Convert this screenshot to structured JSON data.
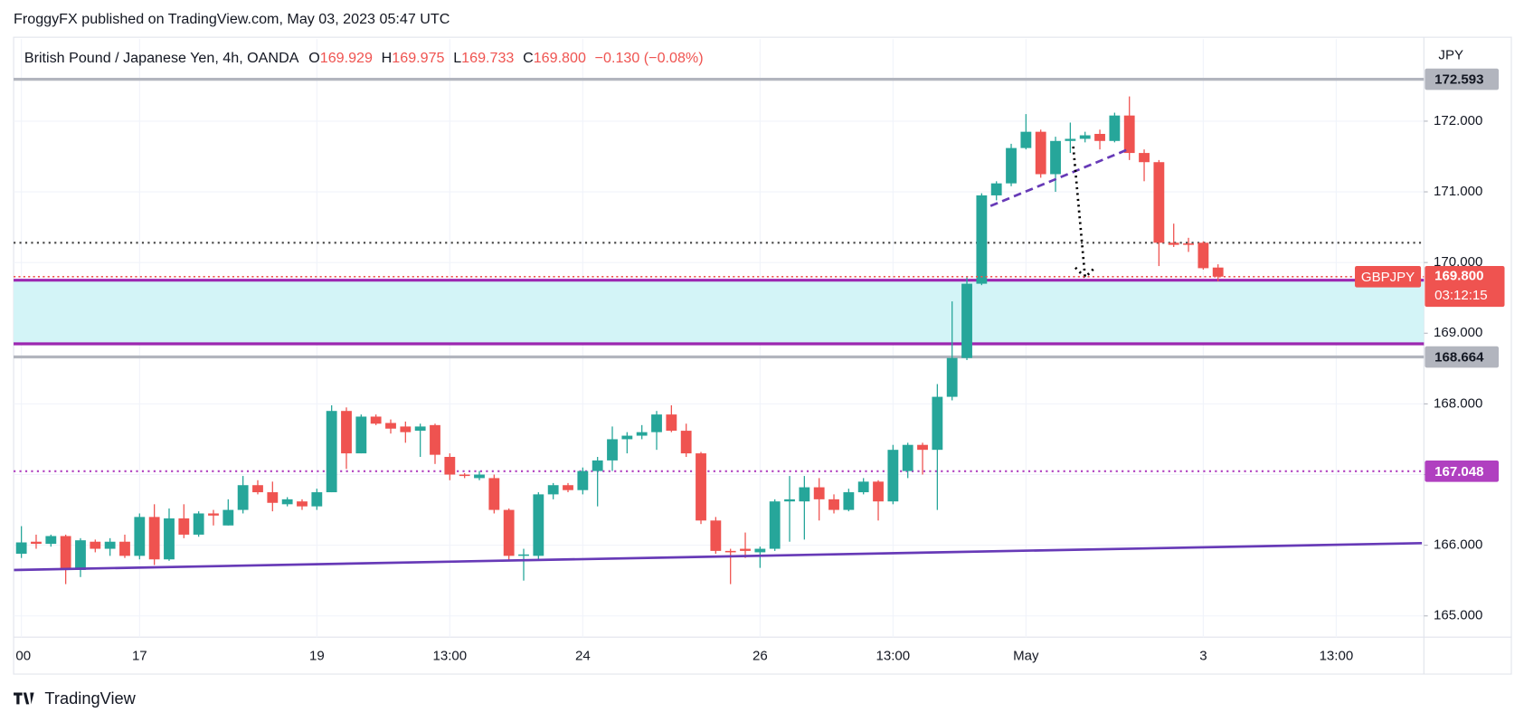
{
  "header": {
    "publisher": "FroggyFX published on TradingView.com, May 03, 2023 05:47 UTC"
  },
  "footer": {
    "brand": "TradingView"
  },
  "chart_data": {
    "type": "candlestick",
    "title": "British Pound / Japanese Yen, 4h, OANDA",
    "ohlc_legend": [
      {
        "label": "O",
        "value": "169.929"
      },
      {
        "label": "H",
        "value": "169.975"
      },
      {
        "label": "L",
        "value": "169.733"
      },
      {
        "label": "C",
        "value": "169.800"
      }
    ],
    "change": "−0.130 (−0.08%)",
    "currency": "JPY",
    "categories": [
      "00",
      null,
      null,
      null,
      null,
      null,
      null,
      null,
      "17",
      null,
      null,
      null,
      null,
      null,
      null,
      null,
      null,
      null,
      null,
      null,
      "19",
      null,
      null,
      null,
      null,
      null,
      null,
      null,
      null,
      "13:00",
      null,
      null,
      null,
      null,
      null,
      null,
      null,
      null,
      "24",
      null,
      null,
      null,
      null,
      null,
      null,
      null,
      null,
      null,
      null,
      null,
      "26",
      null,
      null,
      null,
      null,
      null,
      null,
      null,
      null,
      "13:00",
      null,
      null,
      null,
      null,
      null,
      null,
      null,
      null,
      "May",
      null,
      null,
      null,
      null,
      null,
      null,
      null,
      null,
      null,
      null,
      null,
      "3",
      null,
      null,
      null,
      null,
      null,
      null,
      null,
      null,
      "13:00",
      null,
      null,
      null,
      null,
      null
    ],
    "series": [
      {
        "name": "GBPJPY",
        "open": [
          165.88,
          166.05,
          166.02,
          166.13,
          165.65,
          166.05,
          165.95,
          166.05,
          165.85,
          166.4,
          165.8,
          166.38,
          166.15,
          166.45,
          166.28,
          166.5,
          166.85,
          166.75,
          166.58,
          166.62,
          166.55,
          166.75,
          167.9,
          167.3,
          167.82,
          167.73,
          167.68,
          167.62,
          167.7,
          167.25,
          167.0,
          166.95,
          166.95,
          166.5,
          165.85,
          165.85,
          166.72,
          166.85,
          166.78,
          167.05,
          167.2,
          167.5,
          167.55,
          167.6,
          167.85,
          167.62,
          167.3,
          166.35,
          165.92,
          165.95,
          165.9,
          165.95,
          166.62,
          166.62,
          166.82,
          166.65,
          166.5,
          166.75,
          166.9,
          166.62,
          167.05,
          167.42,
          167.35,
          168.1,
          168.65,
          169.7,
          170.95,
          171.12,
          171.62,
          171.85,
          171.25,
          171.72,
          171.75,
          171.82,
          171.72,
          172.08,
          171.55,
          171.42,
          170.28,
          170.27,
          170.28,
          169.929,
          null,
          null,
          null,
          null,
          null,
          null,
          null,
          null,
          null,
          null,
          null,
          null,
          null
        ],
        "high": [
          166.27,
          166.15,
          166.15,
          166.15,
          166.1,
          166.08,
          166.1,
          166.15,
          166.45,
          166.58,
          166.52,
          166.58,
          166.48,
          166.5,
          166.65,
          166.98,
          166.92,
          166.9,
          166.68,
          166.65,
          166.8,
          167.98,
          167.95,
          167.85,
          167.85,
          167.78,
          167.75,
          167.72,
          167.72,
          167.3,
          167.02,
          167.05,
          167.0,
          166.52,
          165.95,
          166.75,
          166.88,
          166.88,
          167.1,
          167.25,
          167.68,
          167.6,
          167.7,
          167.9,
          167.98,
          167.72,
          167.32,
          166.4,
          165.95,
          166.18,
          165.98,
          166.65,
          166.98,
          166.98,
          166.95,
          166.72,
          166.8,
          166.95,
          166.92,
          167.42,
          167.45,
          167.45,
          168.28,
          169.45,
          169.8,
          170.98,
          171.15,
          171.68,
          172.1,
          171.88,
          171.78,
          171.98,
          171.85,
          171.88,
          172.12,
          172.35,
          171.6,
          171.45,
          170.55,
          170.35,
          170.3,
          169.975,
          null,
          null,
          null,
          null,
          null,
          null,
          null,
          null,
          null,
          null,
          null,
          null,
          null
        ],
        "low": [
          165.82,
          165.95,
          165.98,
          165.45,
          165.55,
          165.9,
          165.85,
          165.82,
          165.8,
          165.72,
          165.78,
          166.1,
          166.12,
          166.28,
          166.28,
          166.45,
          166.72,
          166.48,
          166.55,
          166.5,
          166.5,
          166.75,
          167.08,
          167.3,
          167.7,
          167.58,
          167.45,
          167.25,
          167.15,
          166.92,
          166.95,
          166.92,
          166.45,
          165.78,
          165.5,
          165.8,
          166.65,
          166.75,
          166.72,
          166.55,
          167.05,
          167.3,
          167.5,
          167.35,
          167.6,
          167.25,
          166.3,
          165.88,
          165.45,
          165.82,
          165.68,
          165.92,
          166.05,
          166.08,
          166.35,
          166.45,
          166.48,
          166.72,
          166.35,
          166.58,
          166.95,
          167.0,
          166.5,
          168.05,
          168.62,
          169.68,
          170.88,
          171.08,
          171.6,
          171.2,
          171.0,
          171.55,
          171.7,
          171.6,
          171.7,
          171.45,
          171.15,
          169.95,
          170.22,
          170.15,
          169.9,
          169.733,
          null,
          null,
          null,
          null,
          null,
          null,
          null,
          null,
          null,
          null,
          null,
          null,
          null
        ],
        "close": [
          166.04,
          166.02,
          166.13,
          165.65,
          166.07,
          165.95,
          166.05,
          165.85,
          166.4,
          165.8,
          166.38,
          166.15,
          166.45,
          166.42,
          166.5,
          166.85,
          166.75,
          166.6,
          166.65,
          166.55,
          166.75,
          167.9,
          167.3,
          167.82,
          167.72,
          167.65,
          167.6,
          167.68,
          167.28,
          167.0,
          166.98,
          167.0,
          166.5,
          165.85,
          165.87,
          166.72,
          166.85,
          166.78,
          167.05,
          167.2,
          167.5,
          167.55,
          167.6,
          167.85,
          167.62,
          167.3,
          166.35,
          165.92,
          165.9,
          165.92,
          165.95,
          166.62,
          166.65,
          166.82,
          166.65,
          166.5,
          166.75,
          166.9,
          166.62,
          167.35,
          167.42,
          167.35,
          168.1,
          168.65,
          169.7,
          170.95,
          171.12,
          171.62,
          171.85,
          171.25,
          171.72,
          171.75,
          171.8,
          171.72,
          172.08,
          171.55,
          171.42,
          170.28,
          170.25,
          170.25,
          169.92,
          169.8,
          null,
          null,
          null,
          null,
          null,
          null,
          null,
          null,
          null,
          null,
          null,
          null,
          null
        ]
      }
    ],
    "up_color": "#26a69a",
    "down_color": "#ef5350",
    "ylim": [
      164.7,
      173.16
    ],
    "yticks": [
      {
        "value": 165,
        "label": "165.000"
      },
      {
        "value": 166,
        "label": "166.000"
      },
      {
        "value": 167,
        "label": "167.000"
      },
      {
        "value": 168,
        "label": "168.000"
      },
      {
        "value": 169,
        "label": "169.000"
      },
      {
        "value": 170,
        "label": "170.000"
      },
      {
        "value": 171,
        "label": "171.000"
      },
      {
        "value": 172,
        "label": "172.000"
      }
    ],
    "last_price": {
      "value": 169.8,
      "label": "169.800",
      "countdown": "03:12:15",
      "color": "#ef5350"
    },
    "levels": [
      {
        "value": 172.593,
        "label": "172.593",
        "color": "#b2b5be",
        "style": "solid"
      },
      {
        "value": 168.664,
        "label": "168.664",
        "color": "#b2b5be",
        "style": "solid"
      },
      {
        "value": 167.048,
        "label": "167.048",
        "color": "#b040c0",
        "style": "dotted"
      },
      {
        "value": 170.28,
        "color": "#444444",
        "style": "dotted"
      }
    ],
    "zone": {
      "top": 169.75,
      "bottom": 168.85,
      "fill": "#d3f4f7",
      "border": "#9c27b0"
    },
    "trendlines": [
      {
        "x": [
          -0.5,
          94.8
        ],
        "y": [
          165.65,
          166.03
        ],
        "color": "#673ab7",
        "style": "solid"
      },
      {
        "x": [
          65.6,
          74.9
        ],
        "y": [
          170.8,
          171.6
        ],
        "color": "#673ab7",
        "style": "dashed"
      },
      {
        "x": [
          71.2,
          72.0
        ],
        "y": [
          171.64,
          169.79
        ],
        "color": "#000000",
        "style": "dotted"
      }
    ]
  }
}
